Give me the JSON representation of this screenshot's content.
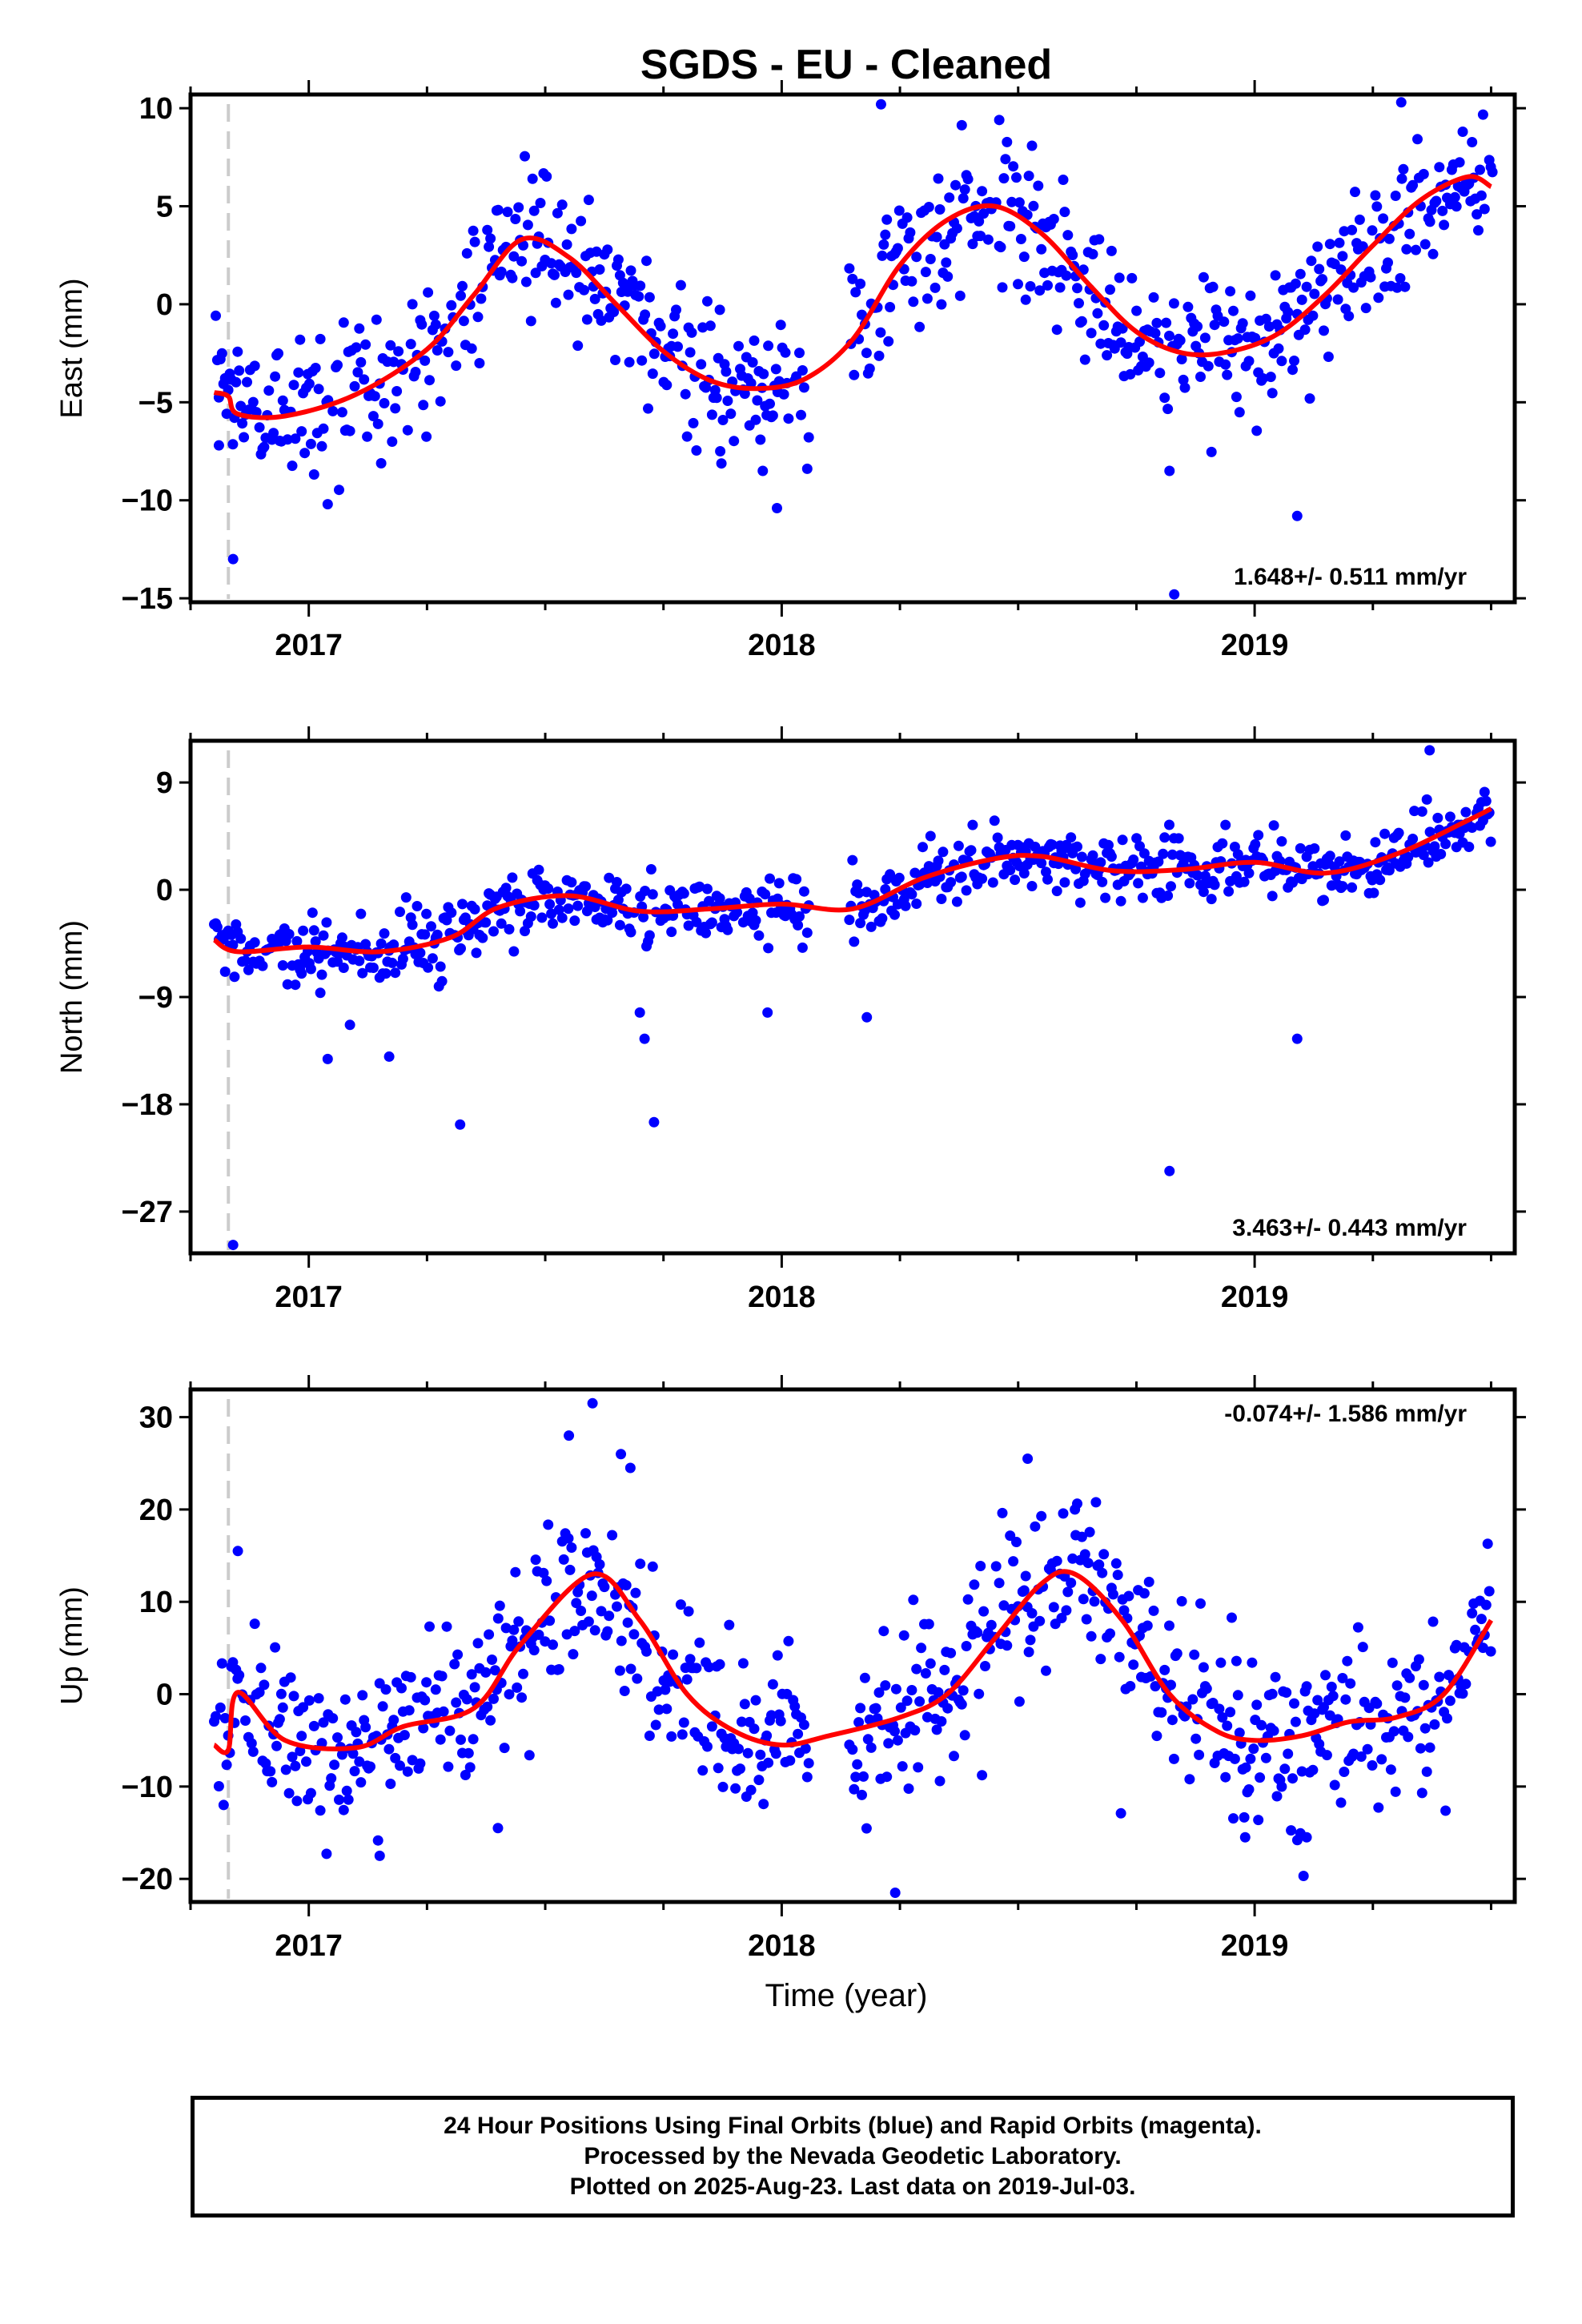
{
  "title": "SGDS  - EU - Cleaned",
  "footer": {
    "line1": "24 Hour Positions Using Final Orbits (blue) and Rapid Orbits (magenta).",
    "line2": "Processed by the Nevada Geodetic Laboratory.",
    "line3": "Plotted on 2025-Aug-23. Last data on 2019-Jul-03."
  },
  "colors": {
    "points": "#0000ff",
    "fit": "#ff0000",
    "marker_line": "#cccccc",
    "axis": "#000000"
  },
  "chart_data": [
    {
      "type": "scatter",
      "name": "east",
      "ylabel": "East (mm)",
      "xlabel": "",
      "xlim": [
        2016.75,
        2019.55
      ],
      "ylim": [
        -15.2,
        10.7
      ],
      "yticks": [
        10,
        5,
        0,
        -5,
        -10,
        -15
      ],
      "ytick_labels": [
        "10",
        "5",
        "0",
        "−5",
        "−10",
        "−15"
      ],
      "xticks": [
        2017,
        2018,
        2019
      ],
      "xtick_labels": [
        "2017",
        "2018",
        "2019"
      ],
      "rate_label": "1.648+/- 0.511 mm/yr",
      "rate_position": "bottom-right",
      "marker_line_x": 2016.83,
      "grid": false,
      "fit": {
        "x": [
          2016.8,
          2016.83,
          2016.85,
          2016.95,
          2017.1,
          2017.25,
          2017.35,
          2017.45,
          2017.55,
          2017.65,
          2017.75,
          2017.85,
          2017.95,
          2018.05,
          2018.15,
          2018.25,
          2018.35,
          2018.45,
          2018.55,
          2018.65,
          2018.75,
          2018.85,
          2018.95,
          2019.05,
          2019.15,
          2019.25,
          2019.35,
          2019.45,
          2019.5
        ],
        "y": [
          -4.5,
          -4.7,
          -5.6,
          -5.7,
          -4.6,
          -2.3,
          0.5,
          3.3,
          2.4,
          0.0,
          -2.4,
          -3.9,
          -4.3,
          -3.8,
          -1.8,
          2.0,
          4.3,
          5.0,
          3.6,
          1.0,
          -1.4,
          -2.5,
          -2.4,
          -1.5,
          0.5,
          3.0,
          5.3,
          6.5,
          6.0
        ]
      },
      "outliers": [
        [
          2016.81,
          -7.2
        ],
        [
          2016.84,
          -13.0
        ],
        [
          2017.04,
          -10.2
        ],
        [
          2017.87,
          -7.5
        ],
        [
          2017.96,
          -8.5
        ],
        [
          2017.99,
          -10.4
        ],
        [
          2018.21,
          10.2
        ],
        [
          2018.46,
          9.4
        ],
        [
          2018.82,
          -8.5
        ],
        [
          2018.83,
          -14.8
        ],
        [
          2019.09,
          -10.8
        ],
        [
          2019.31,
          10.3
        ],
        [
          2019.44,
          8.8
        ]
      ],
      "scatter_spread": 1.8
    },
    {
      "type": "scatter",
      "name": "north",
      "ylabel": "North (mm)",
      "xlabel": "",
      "xlim": [
        2016.75,
        2019.55
      ],
      "ylim": [
        -30.5,
        12.5
      ],
      "yticks": [
        9,
        0,
        -9,
        -18,
        -27
      ],
      "ytick_labels": [
        "9",
        "0",
        "−9",
        "−18",
        "−27"
      ],
      "xticks": [
        2017,
        2018,
        2019
      ],
      "xtick_labels": [
        "2017",
        "2018",
        "2019"
      ],
      "rate_label": "3.463+/- 0.443 mm/yr",
      "rate_position": "bottom-right",
      "marker_line_x": 2016.83,
      "grid": false,
      "fit": {
        "x": [
          2016.8,
          2016.85,
          2017.0,
          2017.15,
          2017.3,
          2017.4,
          2017.55,
          2017.7,
          2017.85,
          2018.0,
          2018.15,
          2018.3,
          2018.45,
          2018.55,
          2018.7,
          2018.85,
          2019.0,
          2019.15,
          2019.3,
          2019.45,
          2019.5
        ],
        "y": [
          -4.2,
          -5.2,
          -4.8,
          -5.2,
          -4.0,
          -1.5,
          -0.5,
          -1.8,
          -1.6,
          -1.2,
          -1.6,
          1.0,
          2.6,
          2.8,
          1.6,
          1.7,
          2.3,
          1.4,
          3.0,
          5.8,
          6.8
        ]
      },
      "outliers": [
        [
          2016.84,
          -29.8
        ],
        [
          2017.04,
          -14.2
        ],
        [
          2017.17,
          -14.0
        ],
        [
          2017.32,
          -19.7
        ],
        [
          2017.7,
          -10.3
        ],
        [
          2017.71,
          -12.5
        ],
        [
          2017.73,
          -19.5
        ],
        [
          2017.97,
          -10.3
        ],
        [
          2018.18,
          -10.7
        ],
        [
          2018.82,
          -23.6
        ],
        [
          2019.09,
          -12.5
        ],
        [
          2019.37,
          11.7
        ]
      ],
      "scatter_spread": 1.3
    },
    {
      "type": "scatter",
      "name": "up",
      "ylabel": "Up (mm)",
      "xlabel": "Time (year)",
      "xlim": [
        2016.75,
        2019.55
      ],
      "ylim": [
        -22.5,
        33.0
      ],
      "yticks": [
        30,
        20,
        10,
        0,
        -10,
        -20
      ],
      "ytick_labels": [
        "30",
        "20",
        "10",
        "0",
        "−10",
        "−20"
      ],
      "xticks": [
        2017,
        2018,
        2019
      ],
      "xtick_labels": [
        "2017",
        "2018",
        "2019"
      ],
      "rate_label": "-0.074+/- 1.586 mm/yr",
      "rate_position": "top-right",
      "marker_line_x": 2016.83,
      "grid": false,
      "fit": {
        "x": [
          2016.8,
          2016.83,
          2016.85,
          2016.95,
          2017.1,
          2017.2,
          2017.35,
          2017.45,
          2017.6,
          2017.7,
          2017.8,
          2017.9,
          2018.0,
          2018.1,
          2018.25,
          2018.35,
          2018.45,
          2018.55,
          2018.62,
          2018.72,
          2018.82,
          2018.92,
          2019.0,
          2019.1,
          2019.2,
          2019.3,
          2019.4,
          2019.5
        ],
        "y": [
          -5.5,
          -6.0,
          0.2,
          -5.0,
          -5.8,
          -3.5,
          -1.5,
          5.5,
          13.0,
          8.0,
          0.0,
          -4.0,
          -5.5,
          -4.5,
          -2.5,
          0.0,
          6.0,
          12.0,
          13.0,
          8.0,
          0.0,
          -4.0,
          -5.0,
          -4.5,
          -3.0,
          -2.5,
          0.0,
          8.0
        ]
      },
      "outliers": [
        [
          2017.55,
          28.0
        ],
        [
          2017.6,
          31.5
        ],
        [
          2017.66,
          26.0
        ],
        [
          2017.68,
          24.5
        ],
        [
          2018.24,
          -21.5
        ],
        [
          2018.52,
          25.5
        ],
        [
          2018.62,
          20.0
        ],
        [
          2018.98,
          -15.5
        ],
        [
          2017.15,
          -17.5
        ],
        [
          2017.4,
          -14.5
        ],
        [
          2019.11,
          -15.5
        ],
        [
          2016.82,
          -12.0
        ],
        [
          2016.85,
          15.5
        ]
      ],
      "scatter_spread": 4.5
    }
  ]
}
